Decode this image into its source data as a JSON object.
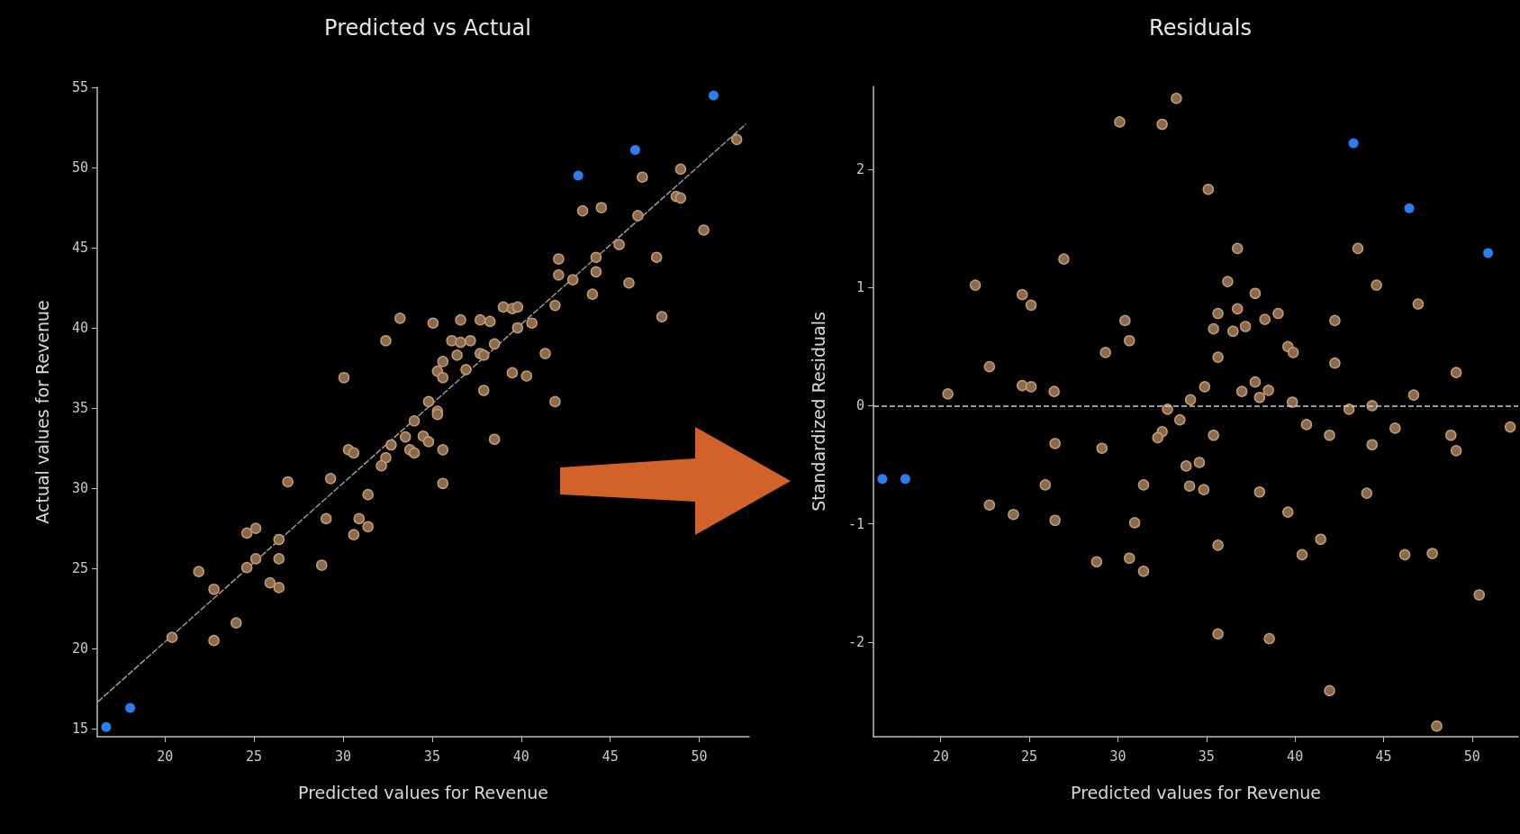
{
  "chart_data": [
    {
      "type": "scatter",
      "title": "Predicted vs Actual",
      "xlabel": "Predicted values for Revenue",
      "ylabel": "Actual values for Revenue",
      "xlim": [
        16.2,
        52.8
      ],
      "ylim": [
        14.5,
        55
      ],
      "xticks": [
        20,
        25,
        30,
        35,
        40,
        45,
        50
      ],
      "yticks": [
        15,
        20,
        25,
        30,
        35,
        40,
        45,
        50,
        55
      ],
      "marker": "circle",
      "series": [
        {
          "color": "#8a6a4c",
          "x": [
            52.1,
            48.95,
            46.8,
            43.45,
            44.5,
            46.55,
            48.7,
            48.95,
            50.25,
            45.5,
            42.1,
            44.2,
            42.1,
            42.9,
            44.2,
            46.05,
            47.6,
            44.0,
            41.9,
            47.9,
            33.2,
            32.4,
            35.05,
            36.6,
            37.7,
            38.25,
            39.0,
            39.5,
            39.8,
            40.6,
            39.8,
            36.1,
            36.6,
            37.15,
            38.5,
            36.4,
            37.7,
            37.9,
            35.6,
            35.3,
            35.6,
            36.9,
            39.5,
            40.3,
            41.35,
            30.05,
            37.9,
            41.9,
            34.8,
            35.3,
            34.0,
            35.3,
            33.5,
            34.5,
            34.8,
            33.75,
            34.0,
            35.6,
            32.7,
            32.4,
            32.15,
            30.3,
            30.6,
            38.5,
            35.6,
            29.3,
            26.9,
            31.4,
            29.05,
            30.9,
            30.6,
            31.4,
            24.6,
            25.1,
            26.4,
            25.1,
            24.6,
            26.4,
            28.8,
            21.9,
            22.75,
            25.9,
            26.4,
            24.0,
            20.4,
            22.75
          ],
          "values": [
            51.75,
            49.9,
            49.4,
            47.3,
            47.5,
            47.0,
            48.2,
            48.1,
            46.1,
            45.2,
            44.3,
            44.4,
            43.3,
            43.0,
            43.5,
            42.8,
            44.4,
            42.1,
            41.4,
            40.7,
            40.6,
            39.2,
            40.3,
            40.5,
            40.5,
            40.4,
            41.3,
            41.2,
            41.3,
            40.3,
            40.0,
            39.2,
            39.1,
            39.2,
            39.0,
            38.3,
            38.4,
            38.3,
            37.9,
            37.3,
            36.9,
            37.4,
            37.2,
            37.0,
            38.4,
            36.9,
            36.1,
            35.4,
            35.4,
            34.8,
            34.2,
            34.6,
            33.2,
            33.25,
            32.9,
            32.4,
            32.2,
            32.4,
            32.7,
            31.9,
            31.4,
            32.4,
            32.2,
            33.05,
            30.3,
            30.6,
            30.4,
            29.6,
            28.1,
            28.1,
            27.1,
            27.6,
            27.2,
            27.5,
            26.8,
            25.6,
            25.05,
            25.6,
            25.2,
            24.8,
            23.7,
            24.1,
            23.8,
            21.6,
            20.7,
            20.5
          ]
        },
        {
          "color": "#2a7ef0",
          "x": [
            16.7,
            18.05,
            43.2,
            46.4,
            50.8
          ],
          "values": [
            15.1,
            16.3,
            49.5,
            51.1,
            54.5
          ]
        },
        {
          "type": "line",
          "color": "#9a9a9a",
          "line_style": "dashed",
          "marker": "none",
          "x": [
            16.25,
            52.6
          ],
          "values": [
            16.7,
            52.7
          ]
        }
      ]
    },
    {
      "type": "scatter",
      "title": "Residuals",
      "xlabel": "Predicted values for Revenue",
      "ylabel": "Standardized Residuals",
      "xlim": [
        16.2,
        52.6
      ],
      "ylim": [
        -2.8,
        2.7
      ],
      "xticks": [
        20,
        25,
        30,
        35,
        40,
        45,
        50
      ],
      "yticks": [
        -2,
        -1,
        0,
        1,
        2
      ],
      "marker": "circle",
      "ref_lines": [
        {
          "axis": "y",
          "value": 0,
          "color": "#cccccc",
          "line_style": "dashed"
        }
      ],
      "series": [
        {
          "color": "#8a6a4c",
          "x": [
            20.4,
            21.95,
            22.75,
            24.6,
            25.1,
            24.6,
            25.1,
            26.4,
            26.95,
            29.3,
            30.1,
            30.4,
            30.65,
            32.5,
            33.3,
            32.8,
            34.1,
            33.5,
            35.1,
            34.9,
            35.4,
            35.65,
            35.65,
            36.2,
            36.5,
            36.75,
            36.75,
            37.2,
            37.0,
            37.75,
            37.75,
            38.0,
            38.3,
            38.5,
            39.05,
            39.6,
            39.9,
            39.85,
            42.25,
            42.25,
            43.55,
            43.05,
            44.35,
            44.6,
            46.7,
            46.95,
            49.1,
            40.65,
            41.95,
            45.65,
            44.35,
            48.8,
            49.1,
            52.15,
            32.5,
            32.25,
            35.4,
            26.45,
            29.1,
            33.85,
            34.6,
            25.9,
            31.45,
            34.05,
            34.85,
            38.0,
            44.05,
            22.75,
            24.1,
            26.45,
            30.95,
            39.6,
            41.45,
            40.4,
            46.2,
            47.75,
            35.65,
            28.8,
            30.65,
            31.45,
            50.4,
            35.65,
            38.55,
            41.95,
            48.0
          ],
          "values": [
            0.1,
            1.02,
            0.33,
            0.94,
            0.85,
            0.17,
            0.16,
            0.12,
            1.24,
            0.45,
            2.4,
            0.72,
            0.55,
            2.38,
            2.6,
            -0.03,
            0.05,
            -0.12,
            1.83,
            0.16,
            0.65,
            0.78,
            0.41,
            1.05,
            0.63,
            1.33,
            0.82,
            0.67,
            0.12,
            0.95,
            0.2,
            0.07,
            0.73,
            0.13,
            0.78,
            0.5,
            0.45,
            0.03,
            0.72,
            0.36,
            1.33,
            -0.03,
            0.0,
            1.02,
            0.09,
            0.86,
            0.28,
            -0.16,
            -0.25,
            -0.19,
            -0.33,
            -0.25,
            -0.38,
            -0.18,
            -0.22,
            -0.27,
            -0.25,
            -0.32,
            -0.36,
            -0.51,
            -0.48,
            -0.67,
            -0.67,
            -0.68,
            -0.71,
            -0.73,
            -0.74,
            -0.84,
            -0.92,
            -0.97,
            -0.99,
            -0.9,
            -1.13,
            -1.26,
            -1.26,
            -1.25,
            -1.18,
            -1.32,
            -1.29,
            -1.4,
            -1.6,
            -1.93,
            -1.97,
            -2.41,
            -2.71
          ]
        },
        {
          "color": "#2a7ef0",
          "x": [
            16.7,
            18.0,
            43.3,
            46.45,
            50.9
          ],
          "values": [
            -0.62,
            -0.62,
            2.22,
            1.67,
            1.29
          ]
        }
      ]
    }
  ]
}
